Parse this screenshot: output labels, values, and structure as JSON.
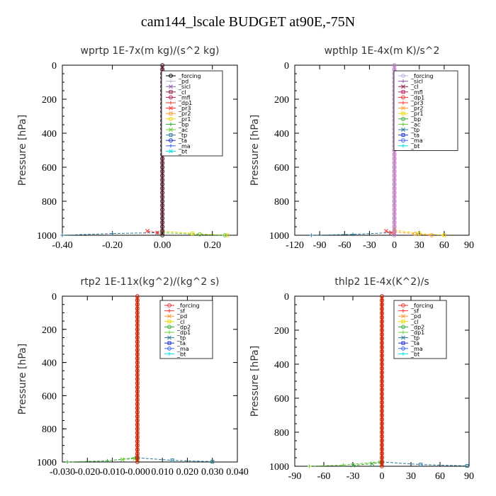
{
  "title": "cam144_lscale  BUDGET at90E,-75N",
  "chart_data": [
    {
      "type": "line",
      "title": "wprtp   1E-7x(m kg)/(s^2 kg)",
      "ylabel": "Pressure [hPa]",
      "xlim": [
        -0.4,
        0.3
      ],
      "ylim": [
        1000,
        0
      ],
      "xticks": [
        "-0.40",
        "-0.20",
        "0.00",
        "0.20"
      ],
      "xtick_values": [
        -0.4,
        -0.2,
        0.0,
        0.2
      ],
      "yticks": [
        "0",
        "200",
        "400",
        "600",
        "800",
        "1000"
      ],
      "ytick_values": [
        0,
        200,
        400,
        600,
        800,
        1000
      ],
      "legend_position": "top-right",
      "series": [
        {
          "name": "_forcing",
          "color": "#000000"
        },
        {
          "name": "_pd",
          "color": "#b4b4d8"
        },
        {
          "name": "_sicl",
          "color": "#8a5aa8"
        },
        {
          "name": "_cl",
          "color": "#8b1a4a"
        },
        {
          "name": "_mfl",
          "color": "#c2185b"
        },
        {
          "name": "_dp1",
          "color": "#e53935"
        },
        {
          "name": "_pr3",
          "color": "#ff3030"
        },
        {
          "name": "_pr2",
          "color": "#ff9933"
        },
        {
          "name": "_pr1",
          "color": "#e8d800"
        },
        {
          "name": "_bp",
          "color": "#33aa33"
        },
        {
          "name": "_ac",
          "color": "#66cc33"
        },
        {
          "name": "_tp",
          "color": "#2a7a9a"
        },
        {
          "name": "_ta",
          "color": "#2233cc"
        },
        {
          "name": "_ma",
          "color": "#4466ee"
        },
        {
          "name": "_bt",
          "color": "#00e0e0"
        }
      ],
      "profile": {
        "x": 0.0,
        "color": "#8b1a4a"
      },
      "near_surface": [
        {
          "color": "#2a7a9a",
          "points": [
            [
              -0.4,
              1000
            ],
            [
              -0.2,
              990
            ],
            [
              -0.02,
              985
            ]
          ]
        },
        {
          "color": "#ff3030",
          "points": [
            [
              -0.06,
              975
            ],
            [
              -0.02,
              985
            ],
            [
              0.0,
              990
            ]
          ]
        },
        {
          "color": "#e8d800",
          "points": [
            [
              0.0,
              975
            ],
            [
              0.12,
              990
            ],
            [
              0.26,
              1000
            ]
          ]
        },
        {
          "color": "#66cc33",
          "points": [
            [
              0.0,
              985
            ],
            [
              0.15,
              995
            ],
            [
              0.25,
              1000
            ]
          ]
        }
      ]
    },
    {
      "type": "line",
      "title": "wpthlp   1E-4x(m K)/s^2",
      "ylabel": "Pressure [hPa]",
      "xlim": [
        -120,
        90
      ],
      "ylim": [
        1000,
        0
      ],
      "xticks": [
        "-120",
        "-90",
        "-60",
        "-30",
        "0",
        "30",
        "60",
        "90"
      ],
      "xtick_values": [
        -120,
        -90,
        -60,
        -30,
        0,
        30,
        60,
        90
      ],
      "yticks": [
        "0",
        "200",
        "400",
        "600",
        "800",
        "1000"
      ],
      "ytick_values": [
        0,
        200,
        400,
        600,
        800,
        1000
      ],
      "legend_position": "top-right",
      "series": [
        {
          "name": "_forcing",
          "color": "#b4b4d8"
        },
        {
          "name": "_sicl",
          "color": "#8a5aa8"
        },
        {
          "name": "_cl",
          "color": "#8b1a4a"
        },
        {
          "name": "_mfl",
          "color": "#c2185b"
        },
        {
          "name": "_dp1",
          "color": "#e53935"
        },
        {
          "name": "_pr3",
          "color": "#ff3030"
        },
        {
          "name": "_pr2",
          "color": "#ff9933"
        },
        {
          "name": "_pr1",
          "color": "#e8d800"
        },
        {
          "name": "_bp",
          "color": "#33aa33"
        },
        {
          "name": "_ac",
          "color": "#66cc33"
        },
        {
          "name": "_tp",
          "color": "#2a7a9a"
        },
        {
          "name": "_ta",
          "color": "#2233cc"
        },
        {
          "name": "_ma",
          "color": "#4466ee"
        },
        {
          "name": "_bt",
          "color": "#00e0e0"
        }
      ],
      "profile": {
        "x": 0.0,
        "color": "#c080c0"
      },
      "near_surface": [
        {
          "color": "#2a7a9a",
          "points": [
            [
              -100,
              1000
            ],
            [
              -50,
              995
            ],
            [
              -5,
              985
            ]
          ]
        },
        {
          "color": "#ff3030",
          "points": [
            [
              -10,
              975
            ],
            [
              -4,
              985
            ],
            [
              0,
              990
            ]
          ]
        },
        {
          "color": "#e8d800",
          "points": [
            [
              0,
              970
            ],
            [
              30,
              990
            ],
            [
              60,
              1000
            ]
          ]
        },
        {
          "color": "#ff9933",
          "points": [
            [
              0,
              980
            ],
            [
              25,
              992
            ],
            [
              45,
              1000
            ]
          ]
        }
      ]
    },
    {
      "type": "line",
      "title": "rtp2   1E-11x(kg^2)/(kg^2 s)",
      "ylabel": "Pressure [hPa]",
      "xlim": [
        -0.03,
        0.04
      ],
      "ylim": [
        1000,
        0
      ],
      "xticks": [
        "-0.030",
        "-0.020",
        "-0.010",
        "-0.000",
        "0.010",
        "0.020",
        "0.030",
        "0.040"
      ],
      "xtick_values": [
        -0.03,
        -0.02,
        -0.01,
        0.0,
        0.01,
        0.02,
        0.03,
        0.04
      ],
      "yticks": [
        "0",
        "200",
        "400",
        "600",
        "800",
        "1000"
      ],
      "ytick_values": [
        0,
        200,
        400,
        600,
        800,
        1000
      ],
      "legend_position": "top-right",
      "series": [
        {
          "name": "_forcing",
          "color": "#e53935"
        },
        {
          "name": "_sf",
          "color": "#ff3030"
        },
        {
          "name": "_pd",
          "color": "#ff9933"
        },
        {
          "name": "_cl",
          "color": "#e8d800"
        },
        {
          "name": "_dp2",
          "color": "#33aa33"
        },
        {
          "name": "_dp1",
          "color": "#66cc33"
        },
        {
          "name": "_tp",
          "color": "#2a7a9a"
        },
        {
          "name": "_ta",
          "color": "#2233cc"
        },
        {
          "name": "_ma",
          "color": "#4466ee"
        },
        {
          "name": "_bt",
          "color": "#00e0e0"
        }
      ],
      "profile": {
        "x": 0.0,
        "color": "#cc2200"
      },
      "near_surface": [
        {
          "color": "#33aa33",
          "points": [
            [
              -0.028,
              1000
            ],
            [
              -0.012,
              993
            ],
            [
              -0.001,
              975
            ]
          ]
        },
        {
          "color": "#66cc33",
          "points": [
            [
              -0.006,
              985
            ],
            [
              -0.001,
              980
            ],
            [
              0.0,
              975
            ]
          ]
        },
        {
          "color": "#2a7a9a",
          "points": [
            [
              0.0,
              975
            ],
            [
              0.014,
              990
            ],
            [
              0.03,
              998
            ]
          ]
        }
      ]
    },
    {
      "type": "line",
      "title": "thlp2   1E-4x(K^2)/s",
      "ylabel": "Pressure [hPa]",
      "xlim": [
        -90,
        90
      ],
      "ylim": [
        1000,
        0
      ],
      "xticks": [
        "-90",
        "-60",
        "-30",
        "0",
        "30",
        "60",
        "90"
      ],
      "xtick_values": [
        -90,
        -60,
        -30,
        0,
        30,
        60,
        90
      ],
      "yticks": [
        "0",
        "200",
        "400",
        "600",
        "800",
        "1000"
      ],
      "ytick_values": [
        0,
        200,
        400,
        600,
        800,
        1000
      ],
      "legend_position": "top-right",
      "series": [
        {
          "name": "_forcing",
          "color": "#e53935"
        },
        {
          "name": "_sf",
          "color": "#ff3030"
        },
        {
          "name": "_pd",
          "color": "#ff9933"
        },
        {
          "name": "_cl",
          "color": "#e8d800"
        },
        {
          "name": "_dp2",
          "color": "#33aa33"
        },
        {
          "name": "_dp1",
          "color": "#66cc33"
        },
        {
          "name": "_tp",
          "color": "#2a7a9a"
        },
        {
          "name": "_ta",
          "color": "#2233cc"
        },
        {
          "name": "_ma",
          "color": "#4466ee"
        },
        {
          "name": "_bt",
          "color": "#00e0e0"
        }
      ],
      "profile": {
        "x": 0.0,
        "color": "#cc2200"
      },
      "near_surface": [
        {
          "color": "#66cc33",
          "points": [
            [
              -75,
              1000
            ],
            [
              -40,
              993
            ],
            [
              -3,
              975
            ]
          ]
        },
        {
          "color": "#33aa33",
          "points": [
            [
              -30,
              995
            ],
            [
              -10,
              985
            ],
            [
              0,
              978
            ]
          ]
        },
        {
          "color": "#2a7a9a",
          "points": [
            [
              0,
              975
            ],
            [
              40,
              990
            ],
            [
              88,
              998
            ]
          ]
        }
      ]
    }
  ]
}
